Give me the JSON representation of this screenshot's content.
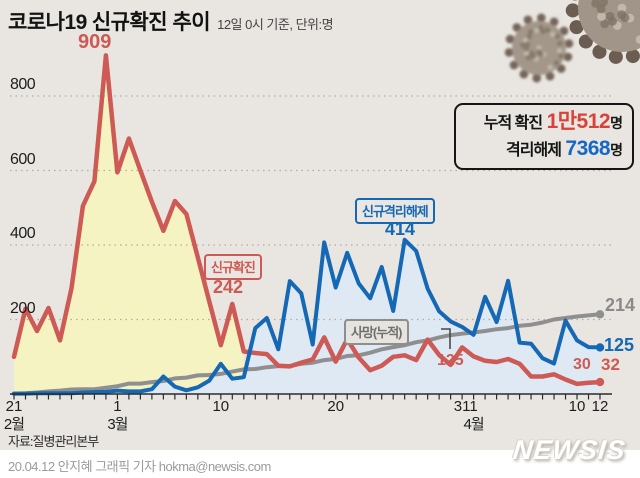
{
  "header": {
    "title_main": "코로나19",
    "title_accent": "신규확진 추이",
    "subtitle": "12일 0시 기준, 단위:명"
  },
  "summary_box": {
    "row1_label": "누적 확진",
    "row1_value": "1만512",
    "row1_unit": "명",
    "row2_label": "격리해제",
    "row2_value": "7368",
    "row2_unit": "명"
  },
  "annotations": {
    "peak_value": "909",
    "confirmed_tag": "신규확진",
    "confirmed_value": "242",
    "released_tag": "신규격리해제",
    "released_value": "414",
    "deaths_tag": "사망(누적)",
    "mid_confirmed_value": "125",
    "end_deaths_value": "214",
    "end_released_value": "125",
    "prev_confirmed_value": "30",
    "end_confirmed_value": "32"
  },
  "footer": {
    "source": "자료:질병관리본부",
    "credit": "20.04.12 안지혜 그래픽 기자 hokma@newsis.com",
    "logo": "NEWSIS"
  },
  "colors": {
    "background": "#e9e6e1",
    "confirmed": "#cd5a54",
    "released": "#1568b3",
    "deaths": "#8f8f8f",
    "confirmed_fill": "#f6f3c3",
    "released_fill": "#dfe9f4",
    "grid": "#b0aba3",
    "axis": "#2b2b2b",
    "value_red": "#d8423a",
    "value_blue": "#1568c4"
  },
  "chart_data": {
    "type": "line",
    "title": "코로나19 신규확진 추이",
    "unit": "명",
    "ylim": [
      0,
      950
    ],
    "yticks": [
      200,
      400,
      600,
      800
    ],
    "grid": "dashed-horizontal",
    "x_dates": [
      "2.21",
      "2.22",
      "2.23",
      "2.24",
      "2.25",
      "2.26",
      "2.27",
      "2.28",
      "2.29",
      "3.1",
      "3.2",
      "3.3",
      "3.4",
      "3.5",
      "3.6",
      "3.7",
      "3.8",
      "3.9",
      "3.10",
      "3.11",
      "3.12",
      "3.13",
      "3.14",
      "3.15",
      "3.16",
      "3.17",
      "3.18",
      "3.19",
      "3.20",
      "3.21",
      "3.22",
      "3.23",
      "3.24",
      "3.25",
      "3.26",
      "3.27",
      "3.28",
      "3.29",
      "3.30",
      "3.31",
      "4.1",
      "4.2",
      "4.3",
      "4.4",
      "4.5",
      "4.6",
      "4.7",
      "4.8",
      "4.9",
      "4.10",
      "4.11",
      "4.12"
    ],
    "series": [
      {
        "name": "신규확진",
        "color_key": "confirmed",
        "fill_color_key": "confirmed_fill",
        "fill_until_index": 20,
        "values": [
          100,
          229,
          169,
          231,
          144,
          284,
          505,
          571,
          909,
          595,
          686,
          600,
          516,
          438,
          518,
          483,
          367,
          248,
          131,
          242,
          114,
          110,
          107,
          76,
          74,
          84,
          93,
          152,
          87,
          147,
          98,
          64,
          76,
          100,
          104,
          91,
          146,
          105,
          78,
          125,
          101,
          89,
          86,
          94,
          81,
          47,
          47,
          53,
          39,
          27,
          30,
          32
        ]
      },
      {
        "name": "신규격리해제",
        "color_key": "released",
        "fill_color_key": "released_fill",
        "fill_until_index": 51,
        "values": [
          1,
          1,
          2,
          2,
          2,
          2,
          4,
          5,
          6,
          9,
          7,
          7,
          13,
          47,
          20,
          10,
          18,
          36,
          81,
          41,
          45,
          177,
          204,
          120,
          303,
          270,
          133,
          407,
          286,
          379,
          297,
          257,
          341,
          223,
          414,
          384,
          283,
          222,
          195,
          180,
          159,
          261,
          193,
          304,
          138,
          135,
          96,
          82,
          197,
          144,
          126,
          125
        ]
      },
      {
        "name": "사망(누적)",
        "color_key": "deaths",
        "values": [
          1,
          2,
          4,
          7,
          9,
          12,
          13,
          13,
          17,
          21,
          28,
          28,
          32,
          35,
          42,
          44,
          50,
          51,
          54,
          60,
          66,
          67,
          72,
          75,
          75,
          81,
          84,
          91,
          94,
          102,
          104,
          111,
          120,
          126,
          131,
          139,
          144,
          152,
          158,
          162,
          165,
          169,
          174,
          177,
          183,
          186,
          192,
          200,
          204,
          208,
          211,
          214
        ]
      }
    ],
    "xticks": [
      {
        "label": "21",
        "day": 0
      },
      {
        "label": "1",
        "day": 9
      },
      {
        "label": "10",
        "day": 18
      },
      {
        "label": "20",
        "day": 28
      },
      {
        "label": "31",
        "day": 39
      },
      {
        "label": "1",
        "day": 40
      },
      {
        "label": "10",
        "day": 49
      },
      {
        "label": "12",
        "day": 51
      }
    ],
    "month_labels": [
      {
        "label": "2월",
        "day": 0
      },
      {
        "label": "3월",
        "day": 9
      },
      {
        "label": "4월",
        "day": 40
      }
    ]
  }
}
